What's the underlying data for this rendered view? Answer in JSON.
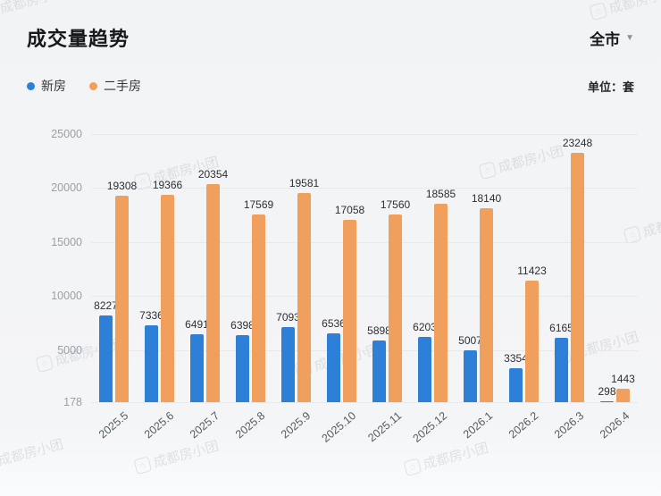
{
  "header": {
    "title": "成交量趋势",
    "region": "全市",
    "unit": "单位：套"
  },
  "legend": {
    "items": [
      {
        "label": "新房",
        "color": "#2d7fd8"
      },
      {
        "label": "二手房",
        "color": "#f0a05c"
      }
    ]
  },
  "chart_data": {
    "type": "bar",
    "title": "成交量趋势",
    "categories": [
      "2025.5",
      "2025.6",
      "2025.7",
      "2025.8",
      "2025.9",
      "2025.10",
      "2025.11",
      "2025.12",
      "2026.1",
      "2026.2",
      "2026.3",
      "2026.4"
    ],
    "series": [
      {
        "name": "新房",
        "color": "#2d7fd8",
        "values": [
          8227,
          7336,
          6491,
          6398,
          7093,
          6536,
          5898,
          6203,
          5007,
          3354,
          6165,
          298
        ]
      },
      {
        "name": "二手房",
        "color": "#f0a05c",
        "values": [
          19308,
          19366,
          20354,
          17569,
          19581,
          17058,
          17560,
          18585,
          18140,
          11423,
          23248,
          1443
        ]
      }
    ],
    "y_ticks": [
      178,
      5000,
      10000,
      15000,
      20000,
      25000
    ],
    "ylim": [
      178,
      25000
    ],
    "grid": true,
    "legend_position": "top-left",
    "xlabel": "",
    "ylabel": ""
  },
  "watermark": {
    "text": "成都房小团",
    "icon": "house-logo-icon"
  }
}
